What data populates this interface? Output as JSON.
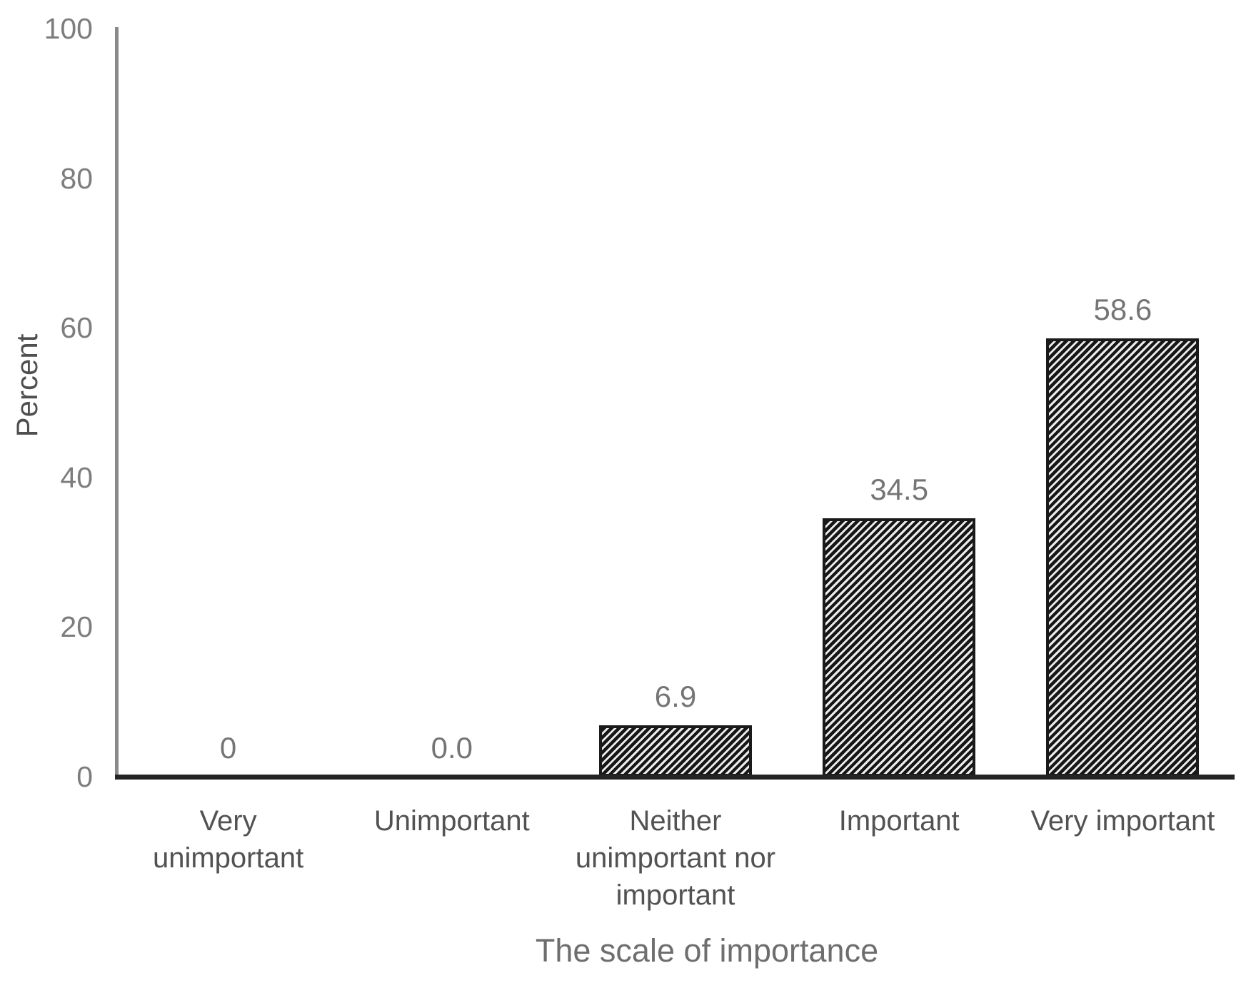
{
  "chart_data": {
    "type": "bar",
    "title": "",
    "xlabel": "The scale of importance",
    "ylabel": "Percent",
    "categories": [
      "Very unimportant",
      "Unimportant",
      "Neither unimportant nor important",
      "Important",
      "Very important"
    ],
    "values": [
      0,
      0,
      6.9,
      34.5,
      58.6
    ],
    "data_labels": [
      "0",
      "0.0",
      "6.9",
      "34.5",
      "58.6"
    ],
    "category_label_lines": [
      [
        "Very",
        "unimportant"
      ],
      [
        "Unimportant"
      ],
      [
        "Neither",
        "unimportant nor",
        "important"
      ],
      [
        "Important"
      ],
      [
        "Very important"
      ]
    ],
    "yticks": [
      0,
      20,
      40,
      60,
      80,
      100
    ],
    "ytick_labels": [
      "0",
      "20",
      "40",
      "60",
      "80",
      "100"
    ],
    "ylim": [
      0,
      100
    ],
    "grid": false,
    "legend": false,
    "bar_fill": "black-diagonal-hatch",
    "bar_border_color": "#1a1a1a",
    "axis_color_y": "#8a8a8a",
    "axis_color_x": "#242424",
    "tick_text_color": "#7d7d7d",
    "category_text_color": "#525252"
  }
}
